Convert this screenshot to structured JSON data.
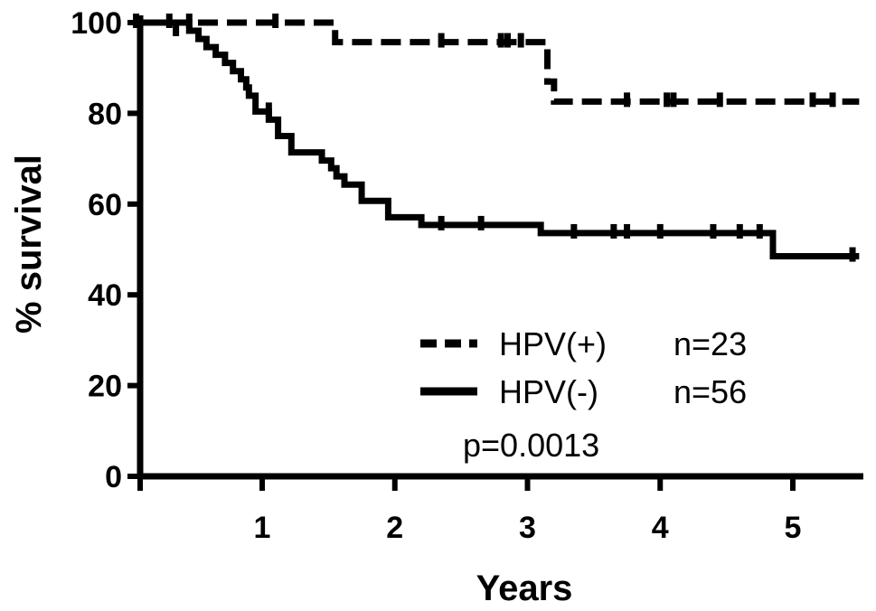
{
  "chart_data": {
    "type": "line",
    "step": true,
    "xlabel": "Years",
    "ylabel": "% survival",
    "xlim": [
      0,
      5.5
    ],
    "ylim": [
      0,
      100
    ],
    "x_ticks": [
      1,
      2,
      3,
      4,
      5
    ],
    "x_tick_labels": [
      "1",
      "2",
      "3",
      "4",
      "5"
    ],
    "y_ticks": [
      0,
      20,
      40,
      60,
      80,
      100
    ],
    "y_tick_labels": [
      "0",
      "20",
      "40",
      "60",
      "80",
      "100"
    ],
    "legend_position": "bottom-right",
    "series": [
      {
        "name": "HPV(+)",
        "n_label": "n=23",
        "line_style": "dashed",
        "color": "#000000",
        "x": [
          0,
          1.55,
          3.15,
          3.2,
          5.5
        ],
        "y": [
          100,
          95.7,
          87.0,
          82.6,
          82.6
        ],
        "censored": [
          {
            "x": 0.3,
            "y": 100
          },
          {
            "x": 0.45,
            "y": 100
          },
          {
            "x": 1.1,
            "y": 100
          },
          {
            "x": 2.35,
            "y": 95.7
          },
          {
            "x": 2.8,
            "y": 95.7
          },
          {
            "x": 2.85,
            "y": 95.7
          },
          {
            "x": 2.95,
            "y": 95.7
          },
          {
            "x": 3.75,
            "y": 82.6
          },
          {
            "x": 4.05,
            "y": 82.6
          },
          {
            "x": 4.1,
            "y": 82.6
          },
          {
            "x": 4.45,
            "y": 82.6
          },
          {
            "x": 5.15,
            "y": 82.6
          },
          {
            "x": 5.3,
            "y": 82.6
          }
        ]
      },
      {
        "name": "HPV(-)",
        "n_label": "n=56",
        "line_style": "solid",
        "color": "#000000",
        "x": [
          0,
          0.45,
          0.52,
          0.58,
          0.65,
          0.72,
          0.78,
          0.84,
          0.88,
          0.9,
          0.95,
          1.05,
          1.12,
          1.22,
          1.45,
          1.52,
          1.56,
          1.62,
          1.75,
          1.95,
          2.2,
          3.1,
          4.85,
          5.5
        ],
        "y": [
          100,
          98.2,
          96.4,
          94.6,
          92.9,
          91.1,
          89.3,
          87.5,
          85.7,
          83.9,
          80.4,
          78.6,
          75.0,
          71.4,
          69.6,
          67.9,
          66.1,
          64.3,
          60.7,
          57.1,
          55.4,
          53.6,
          48.5,
          48.5
        ],
        "censored": [
          {
            "x": 0.05,
            "y": 100
          },
          {
            "x": 0.35,
            "y": 98.2
          },
          {
            "x": 1.05,
            "y": 80.4
          },
          {
            "x": 2.35,
            "y": 55.4
          },
          {
            "x": 2.65,
            "y": 55.4
          },
          {
            "x": 3.35,
            "y": 53.6
          },
          {
            "x": 3.65,
            "y": 53.6
          },
          {
            "x": 3.75,
            "y": 53.6
          },
          {
            "x": 4.0,
            "y": 53.6
          },
          {
            "x": 4.4,
            "y": 53.6
          },
          {
            "x": 4.6,
            "y": 53.6
          },
          {
            "x": 4.75,
            "y": 53.6
          },
          {
            "x": 5.45,
            "y": 48.5
          }
        ]
      }
    ],
    "annotations": [
      "p=0.0013"
    ]
  }
}
